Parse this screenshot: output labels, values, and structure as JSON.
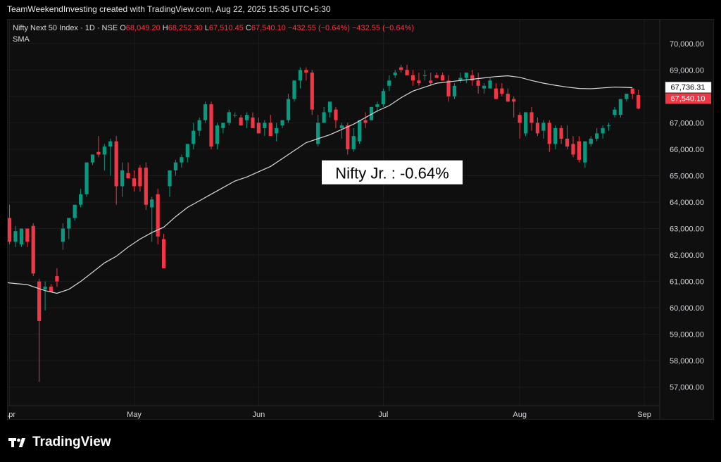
{
  "header": {
    "attribution": "TeamWeekendInvesting created with TradingView.com, Aug 22, 2025 15:35 UTC+5:30"
  },
  "legend": {
    "symbol": "Nifty Next 50 Index · 1D · NSE",
    "o_label": "O",
    "o_value": "68,049.20",
    "h_label": "H",
    "h_value": "68,252.30",
    "l_label": "L",
    "l_value": "67,510.45",
    "c_label": "C",
    "c_value": "67,540.10",
    "change": "−432.55 (−0.64%)",
    "change2": "−432.55 (−0.64%)",
    "indicator": "SMA"
  },
  "annotation": {
    "text": "Nifty Jr. : -0.64%"
  },
  "price_labels": {
    "sma": "67,736.31",
    "close": "67,540.10"
  },
  "footer": {
    "logo_text": "TradingView"
  },
  "colors": {
    "up": "#089981",
    "down": "#f23645",
    "sma": "#d9d9d9",
    "background": "#0f0f0f",
    "axis_text": "#d1d4dc"
  },
  "chart_data": {
    "type": "candlestick",
    "y_ticks": [
      57000,
      58000,
      59000,
      60000,
      61000,
      62000,
      63000,
      64000,
      65000,
      66000,
      67000,
      68000,
      69000,
      70000
    ],
    "y_tick_labels": [
      "57,000.00",
      "58,000.00",
      "59,000.00",
      "60,000.00",
      "61,000.00",
      "62,000.00",
      "63,000.00",
      "64,000.00",
      "65,000.00",
      "66,000.00",
      "67,000.00",
      "68,000.00",
      "69,000.00",
      "70,000.00"
    ],
    "ylim": [
      56300,
      70900
    ],
    "x_ticks": [
      {
        "label": "Apr",
        "index": 0
      },
      {
        "label": "May",
        "index": 21
      },
      {
        "label": "Jun",
        "index": 42
      },
      {
        "label": "Jul",
        "index": 63
      },
      {
        "label": "Aug",
        "index": 86
      },
      {
        "label": "Sep",
        "index": 107
      }
    ],
    "xlim": [
      -0.3,
      109.6
    ],
    "candles": [
      [
        63400,
        63900,
        62400,
        62500
      ],
      [
        62500,
        63100,
        62300,
        62900
      ],
      [
        62400,
        63000,
        62300,
        63000
      ],
      [
        63000,
        63000,
        62300,
        62500
      ],
      [
        63100,
        63200,
        61200,
        61300
      ],
      [
        61000,
        61100,
        57200,
        59500
      ],
      [
        60700,
        61000,
        59900,
        60800
      ],
      [
        60800,
        60900,
        60600,
        60600
      ],
      [
        61200,
        61500,
        60800,
        61000
      ],
      [
        62500,
        63200,
        62200,
        63000
      ],
      [
        63000,
        63400,
        62600,
        63400
      ],
      [
        63400,
        63900,
        63300,
        63900
      ],
      [
        63900,
        64500,
        63800,
        64300
      ],
      [
        64300,
        65500,
        64200,
        65500
      ],
      [
        65500,
        65800,
        65400,
        65800
      ],
      [
        65900,
        66500,
        65700,
        65800
      ],
      [
        65800,
        66200,
        65200,
        66100
      ],
      [
        66100,
        66400,
        65000,
        66300
      ],
      [
        66300,
        66500,
        63900,
        64600
      ],
      [
        64600,
        65500,
        64200,
        65200
      ],
      [
        65100,
        65500,
        64900,
        64900
      ],
      [
        64900,
        65200,
        64400,
        64600
      ],
      [
        65300,
        65400,
        64400,
        64600
      ],
      [
        65300,
        65500,
        63700,
        63900
      ],
      [
        63800,
        64200,
        62500,
        64100
      ],
      [
        64300,
        64500,
        62400,
        62700
      ],
      [
        62600,
        62800,
        61500,
        61500
      ],
      [
        64600,
        65200,
        64200,
        65200
      ],
      [
        65200,
        65600,
        65000,
        65500
      ],
      [
        65500,
        65800,
        65300,
        65700
      ],
      [
        65700,
        66200,
        65500,
        66200
      ],
      [
        66200,
        67000,
        66000,
        66700
      ],
      [
        66700,
        67200,
        66500,
        67100
      ],
      [
        67100,
        67800,
        67000,
        67700
      ],
      [
        67700,
        67800,
        66000,
        66100
      ],
      [
        66200,
        67000,
        66000,
        66900
      ],
      [
        66800,
        67000,
        66600,
        67000
      ],
      [
        67000,
        67500,
        66900,
        67400
      ],
      [
        67300,
        67400,
        67200,
        67300
      ],
      [
        67200,
        67300,
        66900,
        66900
      ],
      [
        67100,
        67400,
        66800,
        67300
      ],
      [
        67200,
        67400,
        66800,
        66800
      ],
      [
        67000,
        67200,
        66600,
        66600
      ],
      [
        66800,
        67100,
        66500,
        67000
      ],
      [
        67000,
        67300,
        66500,
        66500
      ],
      [
        66600,
        67000,
        66300,
        66800
      ],
      [
        66900,
        67100,
        66800,
        67100
      ],
      [
        67100,
        68100,
        67000,
        67900
      ],
      [
        67900,
        68600,
        67800,
        68600
      ],
      [
        68600,
        69100,
        68300,
        69000
      ],
      [
        69000,
        69100,
        68600,
        68900
      ],
      [
        68900,
        69000,
        67300,
        67500
      ],
      [
        66200,
        67300,
        66100,
        67000
      ],
      [
        67000,
        67600,
        67000,
        67400
      ],
      [
        67400,
        67800,
        67200,
        67800
      ],
      [
        67500,
        67600,
        66800,
        67100
      ],
      [
        66800,
        67000,
        66400,
        66900
      ],
      [
        66900,
        67000,
        65800,
        66000
      ],
      [
        66000,
        66800,
        65900,
        66500
      ],
      [
        66300,
        67100,
        66200,
        67100
      ],
      [
        67100,
        67400,
        66800,
        67000
      ],
      [
        67100,
        67600,
        67100,
        67600
      ],
      [
        67600,
        67800,
        67400,
        67700
      ],
      [
        67700,
        68300,
        67600,
        68200
      ],
      [
        68400,
        68800,
        68200,
        68600
      ],
      [
        68800,
        69000,
        68700,
        68900
      ],
      [
        69100,
        69200,
        68900,
        69000
      ],
      [
        69000,
        69200,
        68800,
        68800
      ],
      [
        68800,
        69000,
        68400,
        68600
      ],
      [
        68600,
        68900,
        68400,
        68500
      ],
      [
        68800,
        69000,
        68600,
        68800
      ],
      [
        68600,
        68900,
        68400,
        68500
      ],
      [
        68800,
        68900,
        68700,
        68700
      ],
      [
        68800,
        68900,
        68600,
        68600
      ],
      [
        68600,
        68800,
        67800,
        68000
      ],
      [
        68000,
        68500,
        67900,
        68400
      ],
      [
        68600,
        68900,
        68500,
        68700
      ],
      [
        68700,
        68900,
        68500,
        68900
      ],
      [
        68800,
        69000,
        68400,
        68600
      ],
      [
        68600,
        68900,
        68100,
        68400
      ],
      [
        68300,
        68500,
        68100,
        68400
      ],
      [
        68300,
        68700,
        68300,
        68600
      ],
      [
        68300,
        68500,
        67900,
        67900
      ],
      [
        68300,
        68500,
        68000,
        68100
      ],
      [
        68100,
        68300,
        67800,
        67800
      ],
      [
        67900,
        68000,
        67200,
        67800
      ],
      [
        67300,
        67400,
        66400,
        67000
      ],
      [
        66600,
        67400,
        66500,
        67400
      ],
      [
        67400,
        67600,
        66700,
        67000
      ],
      [
        67000,
        67200,
        66500,
        66600
      ],
      [
        66700,
        67100,
        66400,
        67000
      ],
      [
        67000,
        67100,
        65900,
        66200
      ],
      [
        66200,
        66900,
        66000,
        66800
      ],
      [
        66800,
        66900,
        66200,
        66400
      ],
      [
        66400,
        66900,
        66000,
        66100
      ],
      [
        66200,
        66500,
        65700,
        65800
      ],
      [
        66300,
        66500,
        65500,
        65600
      ],
      [
        65500,
        66300,
        65300,
        66300
      ],
      [
        66200,
        66500,
        66100,
        66400
      ],
      [
        66400,
        66800,
        66300,
        66600
      ],
      [
        66600,
        66900,
        66400,
        66800
      ],
      [
        66900,
        67000,
        66700,
        66900
      ],
      [
        67300,
        67600,
        67200,
        67500
      ],
      [
        67300,
        67900,
        67200,
        67900
      ],
      [
        67900,
        68100,
        67800,
        68100
      ],
      [
        68300,
        68300,
        67900,
        68100
      ],
      [
        68049.2,
        68252.3,
        67510.45,
        67540.1
      ]
    ],
    "sma": [
      [
        -0.3,
        60950
      ],
      [
        1,
        60920
      ],
      [
        3,
        60880
      ],
      [
        4,
        60800
      ],
      [
        6,
        60650
      ],
      [
        8,
        60550
      ],
      [
        10,
        60700
      ],
      [
        12,
        61000
      ],
      [
        14,
        61350
      ],
      [
        16,
        61700
      ],
      [
        18,
        61950
      ],
      [
        20,
        62300
      ],
      [
        22,
        62600
      ],
      [
        24,
        62850
      ],
      [
        26,
        63050
      ],
      [
        28,
        63450
      ],
      [
        30,
        63800
      ],
      [
        32,
        64050
      ],
      [
        34,
        64300
      ],
      [
        36,
        64550
      ],
      [
        38,
        64800
      ],
      [
        40,
        64950
      ],
      [
        42,
        65150
      ],
      [
        44,
        65350
      ],
      [
        46,
        65650
      ],
      [
        48,
        65950
      ],
      [
        50,
        66250
      ],
      [
        52,
        66400
      ],
      [
        54,
        66550
      ],
      [
        56,
        66750
      ],
      [
        58,
        66950
      ],
      [
        60,
        67200
      ],
      [
        62,
        67450
      ],
      [
        64,
        67650
      ],
      [
        66,
        67950
      ],
      [
        68,
        68200
      ],
      [
        70,
        68350
      ],
      [
        72,
        68500
      ],
      [
        74,
        68550
      ],
      [
        76,
        68600
      ],
      [
        78,
        68650
      ],
      [
        80,
        68700
      ],
      [
        82,
        68750
      ],
      [
        84,
        68780
      ],
      [
        86,
        68720
      ],
      [
        88,
        68600
      ],
      [
        90,
        68500
      ],
      [
        92,
        68420
      ],
      [
        94,
        68350
      ],
      [
        96,
        68300
      ],
      [
        98,
        68290
      ],
      [
        100,
        68320
      ],
      [
        102,
        68350
      ],
      [
        104,
        68340
      ],
      [
        105,
        68330
      ]
    ]
  }
}
